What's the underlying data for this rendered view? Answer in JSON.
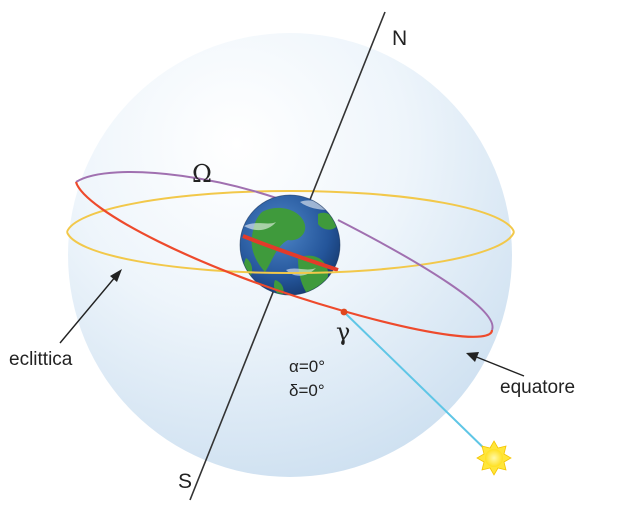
{
  "labels": {
    "north": "N",
    "south": "S",
    "ascending_node": "Ω",
    "vernal_point": "γ",
    "right_ascension": "α=0°",
    "declination": "δ=0°",
    "ecliptic": "eclittica",
    "equator": "equatore"
  },
  "icons": {
    "earth": "earth-icon",
    "sun": "sun-icon"
  },
  "colors": {
    "sphere": "#dcebf7",
    "ecliptic_circle": "#f2c84a",
    "equator_front": "#ee4a2c",
    "equator_back": "#a070b0",
    "sun_ray": "#5fc6e6",
    "sun": "#ffe63a",
    "axis": "#333333",
    "vernal_point": "#e0461e"
  }
}
